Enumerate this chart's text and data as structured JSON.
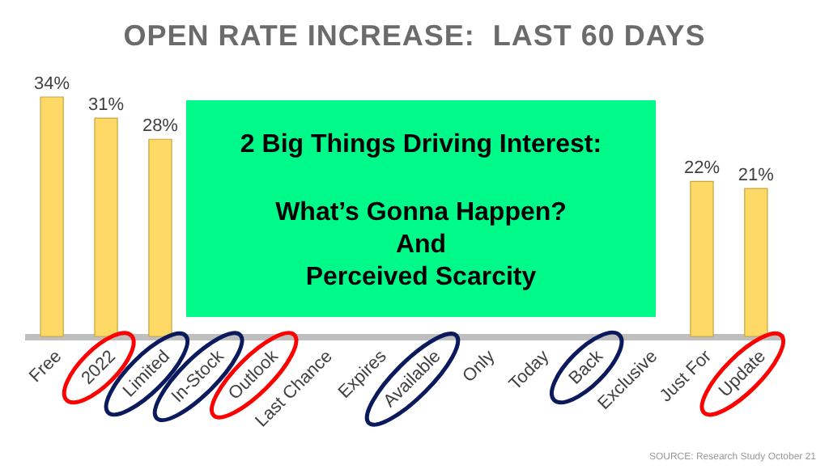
{
  "chart_data": {
    "type": "bar",
    "title": "OPEN RATE INCREASE:  LAST 60 DAYS",
    "categories": [
      "Free",
      "2022",
      "Limited",
      "In-Stock",
      "Outlook",
      "Last Chance",
      "Expires",
      "Available",
      "Only",
      "Today",
      "Back",
      "Exclusive",
      "Just For",
      "Update"
    ],
    "values": [
      34,
      31,
      28,
      null,
      null,
      null,
      null,
      null,
      null,
      null,
      null,
      null,
      22,
      21
    ],
    "value_labels": [
      "34%",
      "31%",
      "28%",
      null,
      null,
      null,
      null,
      null,
      null,
      null,
      null,
      null,
      "22%",
      "21%"
    ],
    "color": "#ffd966",
    "tick_labels": "x",
    "annotations": [
      "2 Big Things Driving Interest:",
      "What’s Gonna Happen?",
      "And",
      "Perceived Scarcity",
      "SOURCE: Research Study October 21"
    ]
  }
}
